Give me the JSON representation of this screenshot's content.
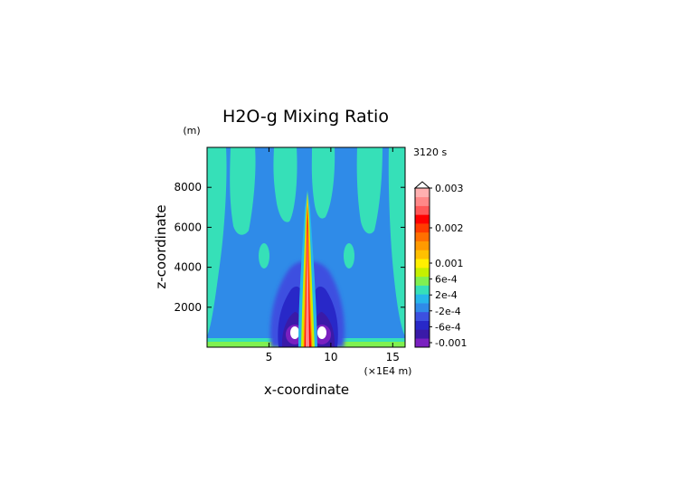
{
  "chart_data": {
    "type": "heatmap",
    "title": "H2O-g Mixing Ratio",
    "time_label": "3120 s",
    "xlabel": "x-coordinate",
    "ylabel": "z-coordinate",
    "x_unit": "(×1E4 m)",
    "y_unit": "(m)",
    "x_ticks": [
      5,
      10,
      15
    ],
    "y_ticks": [
      2000,
      4000,
      6000,
      8000
    ],
    "xlim": [
      0,
      16
    ],
    "ylim": [
      0,
      10000
    ],
    "colorbar": {
      "colors": [
        "#7a20c0",
        "#3a1aa8",
        "#2828c8",
        "#3c50e0",
        "#2f8be8",
        "#26b7ea",
        "#36e0b8",
        "#80f050",
        "#c6f000",
        "#fff000",
        "#ffc000",
        "#ff9a00",
        "#ff7000",
        "#ff3c00",
        "#ff0000",
        "#ff5858",
        "#ff8888",
        "#ffb0b0"
      ],
      "labels": [
        {
          "text": "0.003",
          "value": 0.003
        },
        {
          "text": "0.002",
          "value": 0.002
        },
        {
          "text": "0.001",
          "value": 0.001
        },
        {
          "text": "6e-4",
          "value": 0.0006
        },
        {
          "text": "2e-4",
          "value": 0.0002
        },
        {
          "text": "-2e-4",
          "value": -0.0002
        },
        {
          "text": "-6e-4",
          "value": -0.0006
        },
        {
          "text": "-0.001",
          "value": -0.001
        }
      ]
    },
    "background_value_color": "#2f8be8",
    "regions": [
      {
        "level": "low",
        "color": "#36e0b8",
        "description": "upper plumes"
      },
      {
        "level": "high",
        "color": "#ff0000",
        "description": "central column near x=8"
      },
      {
        "level": "lowest",
        "color": "#7a20c0",
        "description": "lobes near x=7.3 and x=8.8 below 1500 m"
      }
    ]
  }
}
